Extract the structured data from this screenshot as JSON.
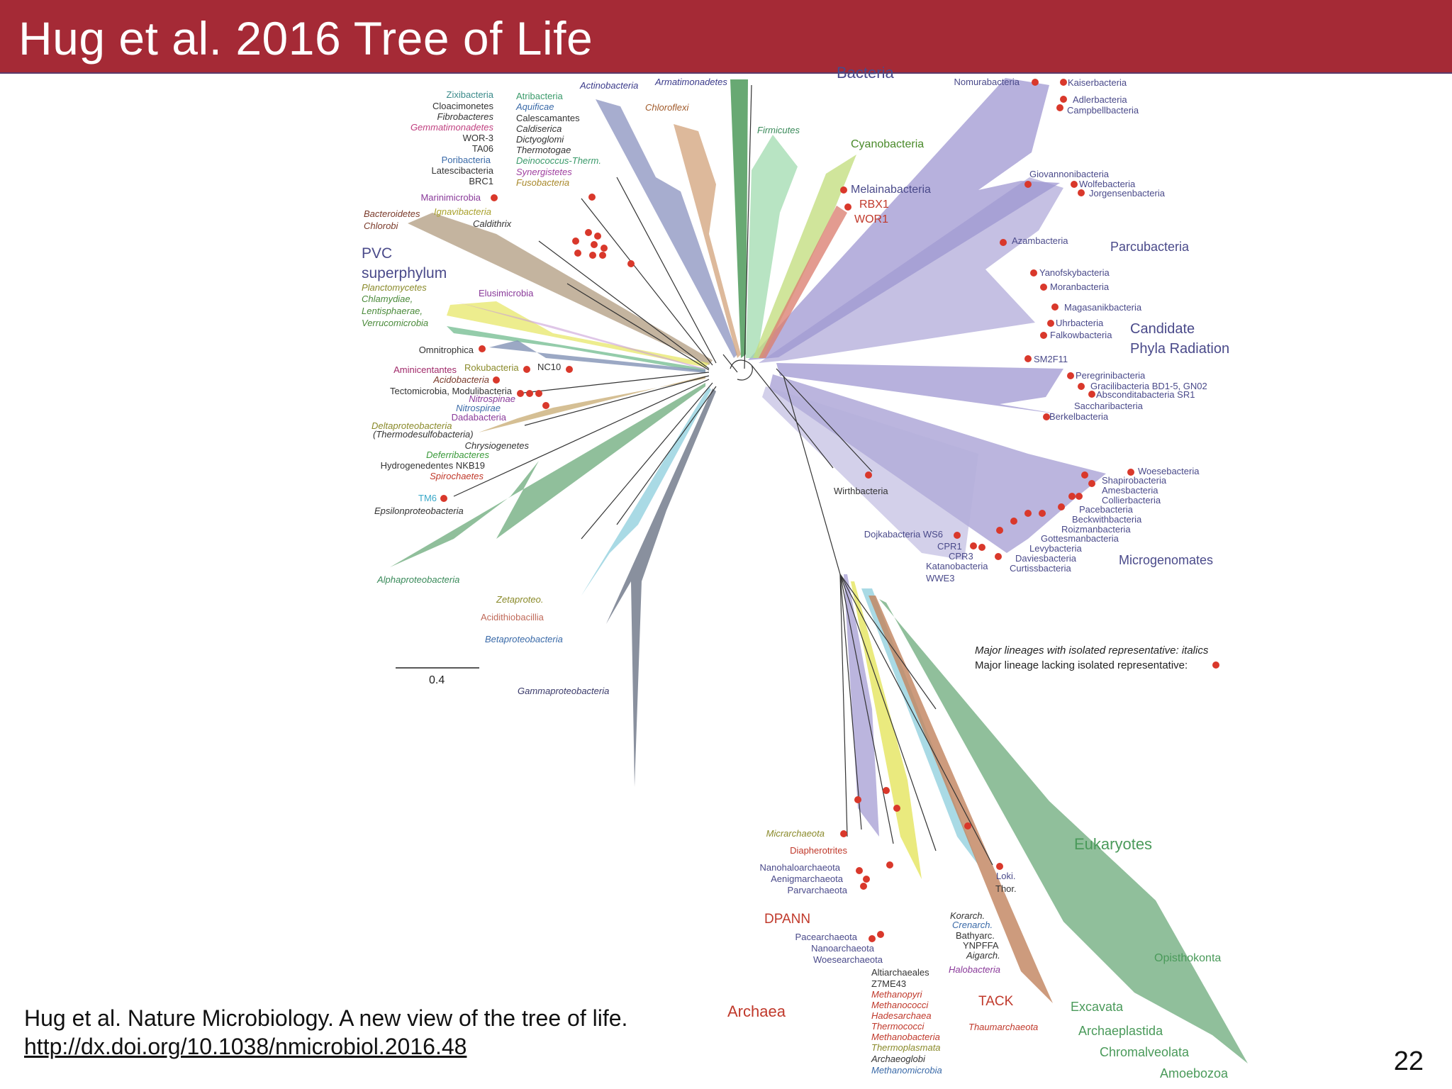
{
  "slide": {
    "title": "Hug et al. 2016 Tree of Life",
    "citation": "Hug et al. Nature Microbiology. A new view of the tree of life.",
    "link": "http://dx.doi.org/10.1038/nmicrobiol.2016.48",
    "page_number": "22"
  },
  "colors": {
    "title_bar": "#a52a36",
    "cpr_purple": "#8c83c8",
    "dot_red": "#d9382b",
    "eukaryote_green": "#5aa06a",
    "archaea_red": "#c0392b",
    "gamma_slate": "#5a6478"
  },
  "scale_bar": {
    "label": "0.4"
  },
  "legend": {
    "italic_line": "Major lineages with isolated representative: italics",
    "dot_line": "Major lineage lacking isolated representative:"
  },
  "group_labels": {
    "bacteria": "Bacteria",
    "pvc_line1": "PVC",
    "pvc_line2": "superphylum",
    "cpr_line1": "Candidate",
    "cpr_line2": "Phyla Radiation",
    "parcubacteria": "Parcubacteria",
    "microgenomates": "Microgenomates",
    "eukaryotes": "Eukaryotes",
    "archaea": "Archaea",
    "dpann": "DPANN",
    "tack": "TACK"
  },
  "taxa_left": [
    "Zixibacteria",
    "Cloacimonetes",
    "Fibrobacteres",
    "Gemmatimonadetes",
    "WOR-3",
    "TA06",
    "Poribacteria",
    "Latescibacteria",
    "BRC1"
  ],
  "taxa_left2": [
    "Atribacteria",
    "Aquificae",
    "Calescamantes",
    "Caldiserica",
    "Dictyoglomi",
    "Thermotogae",
    "Deinococcus-Therm.",
    "Synergistetes",
    "Fusobacteria"
  ],
  "taxa_top": [
    "Actinobacteria",
    "Armatimonadetes",
    "Chloroflexi",
    "Firmicutes",
    "Cyanobacteria",
    "Melainabacteria",
    "RBX1",
    "WOR1"
  ],
  "taxa_mid_left": [
    "Marinimicrobia",
    "Ignavibacteria",
    "Bacteroidetes",
    "Chlorobi",
    "Caldithrix",
    "Planctomycetes",
    "Chlamydiae,",
    "Lentisphaerae,",
    "Verrucomicrobia",
    "Elusimicrobia",
    "Omnitrophica",
    "Aminicentantes",
    "Rokubacteria",
    "NC10",
    "Acidobacteria",
    "Tectomicrobia, Modulibacteria",
    "Nitrospinae",
    "Nitrospirae",
    "Dadabacteria",
    "Deltaproteobacteria",
    "(Thermodesulfobacteria)",
    "Chrysiogenetes",
    "Deferribacteres",
    "Hydrogenedentes NKB19",
    "Spirochaetes",
    "TM6",
    "Epsilonproteobacteria",
    "Alphaproteobacteria",
    "Zetaproteo.",
    "Acidithiobacillia",
    "Betaproteobacteria",
    "Gammaproteobacteria"
  ],
  "taxa_cpr": [
    "Nomurabacteria",
    "Kaiserbacteria",
    "Adlerbacteria",
    "Campbellbacteria",
    "Giovannonibacteria",
    "Wolfebacteria",
    "Jorgensenbacteria",
    "Azambacteria",
    "Yanofskybacteria",
    "Moranbacteria",
    "Magasanikbacteria",
    "Uhrbacteria",
    "Falkowbacteria",
    "SM2F11",
    "Peregrinibacteria",
    "Gracilibacteria BD1-5, GN02",
    "Absconditabacteria SR1",
    "Saccharibacteria",
    "Berkelbacteria",
    "Woesebacteria",
    "Shapirobacteria",
    "Amesbacteria",
    "Collierbacteria",
    "Pacebacteria",
    "Beckwithbacteria",
    "Roizmanbacteria",
    "Gottesmanbacteria",
    "Levybacteria",
    "Daviesbacteria",
    "Curtissbacteria",
    "Dojkabacteria WS6",
    "CPR1",
    "CPR3",
    "Katanobacteria",
    "WWE3",
    "Wirthbacteria"
  ],
  "taxa_archaea": [
    "Micrarchaeota",
    "Diapherotrites",
    "Nanohaloarchaeota",
    "Aenigmarchaeota",
    "Parvarchaeota",
    "Pacearchaeota",
    "Nanoarchaeota",
    "Woesearchaeota",
    "Altiarchaeales",
    "Z7ME43",
    "Methanopyri",
    "Methanococci",
    "Hadesarchaea",
    "Thermococci",
    "Methanobacteria",
    "Thermoplasmata",
    "Archaeoglobi",
    "Methanomicrobia",
    "Korarch.",
    "Crenarch.",
    "Bathyarc.",
    "YNPFFA",
    "Aigarch.",
    "Halobacteria",
    "Loki.",
    "Thor.",
    "Thaumarchaeota"
  ],
  "taxa_euk": [
    "Opisthokonta",
    "Excavata",
    "Archaeplastida",
    "Chromalveolata",
    "Amoebozoa"
  ]
}
